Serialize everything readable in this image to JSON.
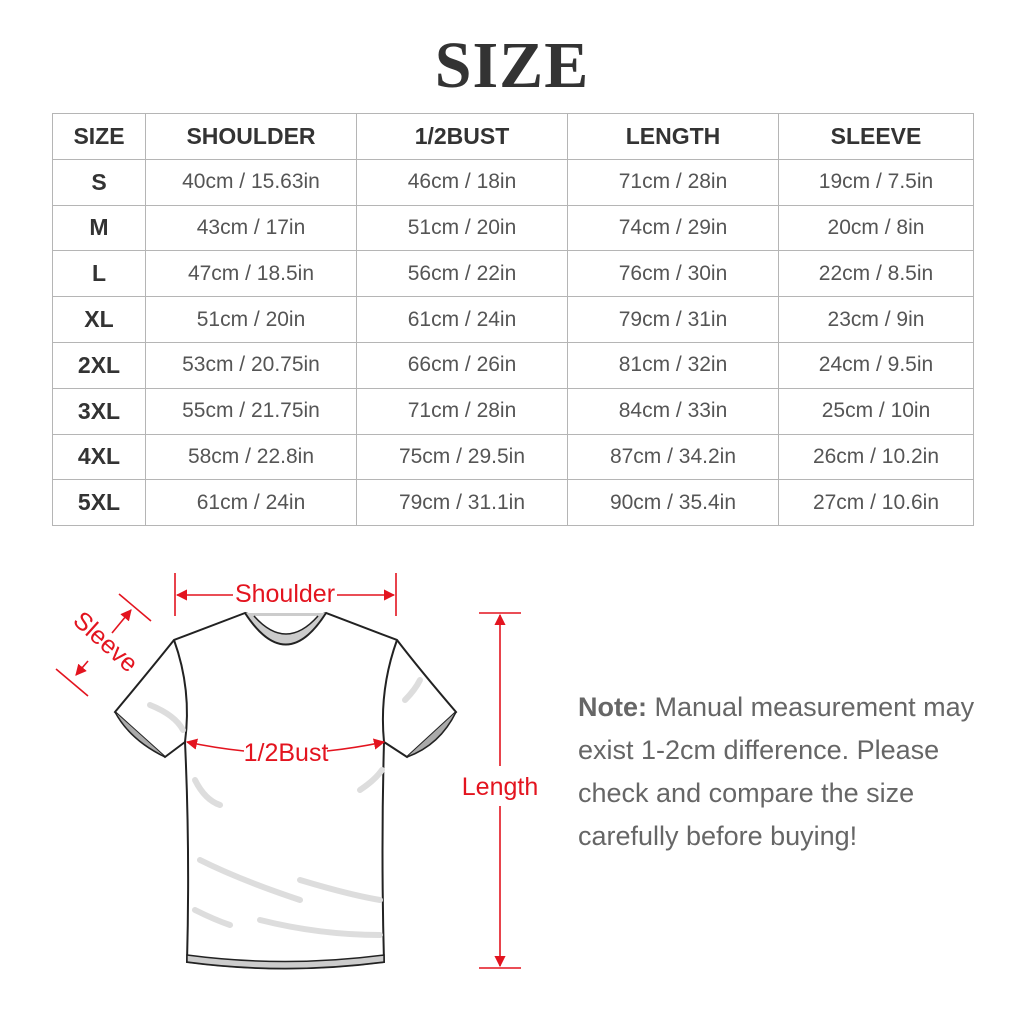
{
  "title": "SIZE",
  "table": {
    "headers": [
      "SIZE",
      "SHOULDER",
      "1/2BUST",
      "LENGTH",
      "SLEEVE"
    ],
    "rows": [
      [
        "S",
        "40cm / 15.63in",
        "46cm / 18in",
        "71cm / 28in",
        "19cm / 7.5in"
      ],
      [
        "M",
        "43cm / 17in",
        "51cm / 20in",
        "74cm / 29in",
        "20cm / 8in"
      ],
      [
        "L",
        "47cm / 18.5in",
        "56cm / 22in",
        "76cm / 30in",
        "22cm / 8.5in"
      ],
      [
        "XL",
        "51cm / 20in",
        "61cm / 24in",
        "79cm / 31in",
        "23cm / 9in"
      ],
      [
        "2XL",
        "53cm / 20.75in",
        "66cm / 26in",
        "81cm / 32in",
        "24cm / 9.5in"
      ],
      [
        "3XL",
        "55cm / 21.75in",
        "71cm / 28in",
        "84cm / 33in",
        "25cm / 10in"
      ],
      [
        "4XL",
        "58cm / 22.8in",
        "75cm / 29.5in",
        "87cm / 34.2in",
        "26cm / 10.2in"
      ],
      [
        "5XL",
        "61cm / 24in",
        "79cm / 31.1in",
        "90cm / 35.4in",
        "27cm / 10.6in"
      ]
    ]
  },
  "diagram": {
    "shoulder": "Shoulder",
    "sleeve": "Sleeve",
    "bust": "1/2Bust",
    "length": "Length",
    "accent_color": "#e3141f"
  },
  "note": {
    "label": "Note:",
    "text": "Manual measurement may exist 1-2cm difference. Please check and compare the size carefully before buying!"
  }
}
